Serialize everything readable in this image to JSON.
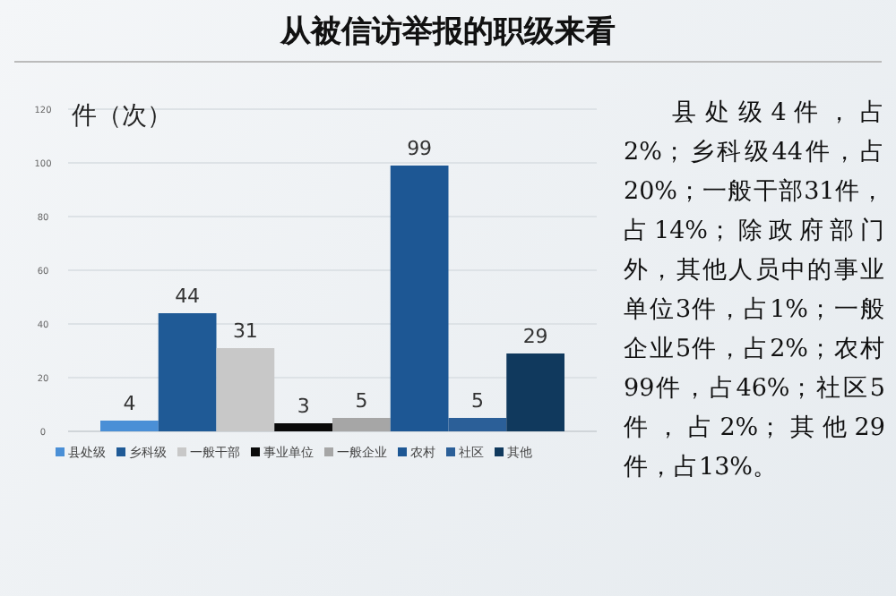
{
  "chart_data": {
    "type": "bar",
    "title": "从被信访举报的职级来看",
    "ylabel": "件（次）",
    "categories": [
      null
    ],
    "series": [
      {
        "name": "县处级",
        "color": "#4a8fd6",
        "values": [
          4
        ]
      },
      {
        "name": "乡科级",
        "color": "#1f5a96",
        "values": [
          44
        ]
      },
      {
        "name": "一般干部",
        "color": "#c8c8c8",
        "values": [
          31
        ]
      },
      {
        "name": "事业单位",
        "color": "#0a0a0a",
        "values": [
          3
        ]
      },
      {
        "name": "一般企业",
        "color": "#a6a6a6",
        "values": [
          5
        ]
      },
      {
        "name": "农村",
        "color": "#1d5794",
        "values": [
          99
        ]
      },
      {
        "name": "社区",
        "color": "#2b5f98",
        "values": [
          5
        ]
      },
      {
        "name": "其他",
        "color": "#10395d",
        "values": [
          29
        ]
      }
    ],
    "ylim": [
      0,
      120
    ],
    "yticks": [
      0,
      20,
      40,
      60,
      80,
      100,
      120
    ],
    "grid": "y",
    "data_labels": true,
    "legend": "bottom",
    "annotations": [
      "县处级4件，占2%；乡科级44件，占20%；一般干部31件，占14%；除政府部门外，其他人员中的事业单位3件，占1%；一般企业5件，占2%；农村99件，占46%；社区5件，占2%；其他29件，占13%。"
    ]
  }
}
